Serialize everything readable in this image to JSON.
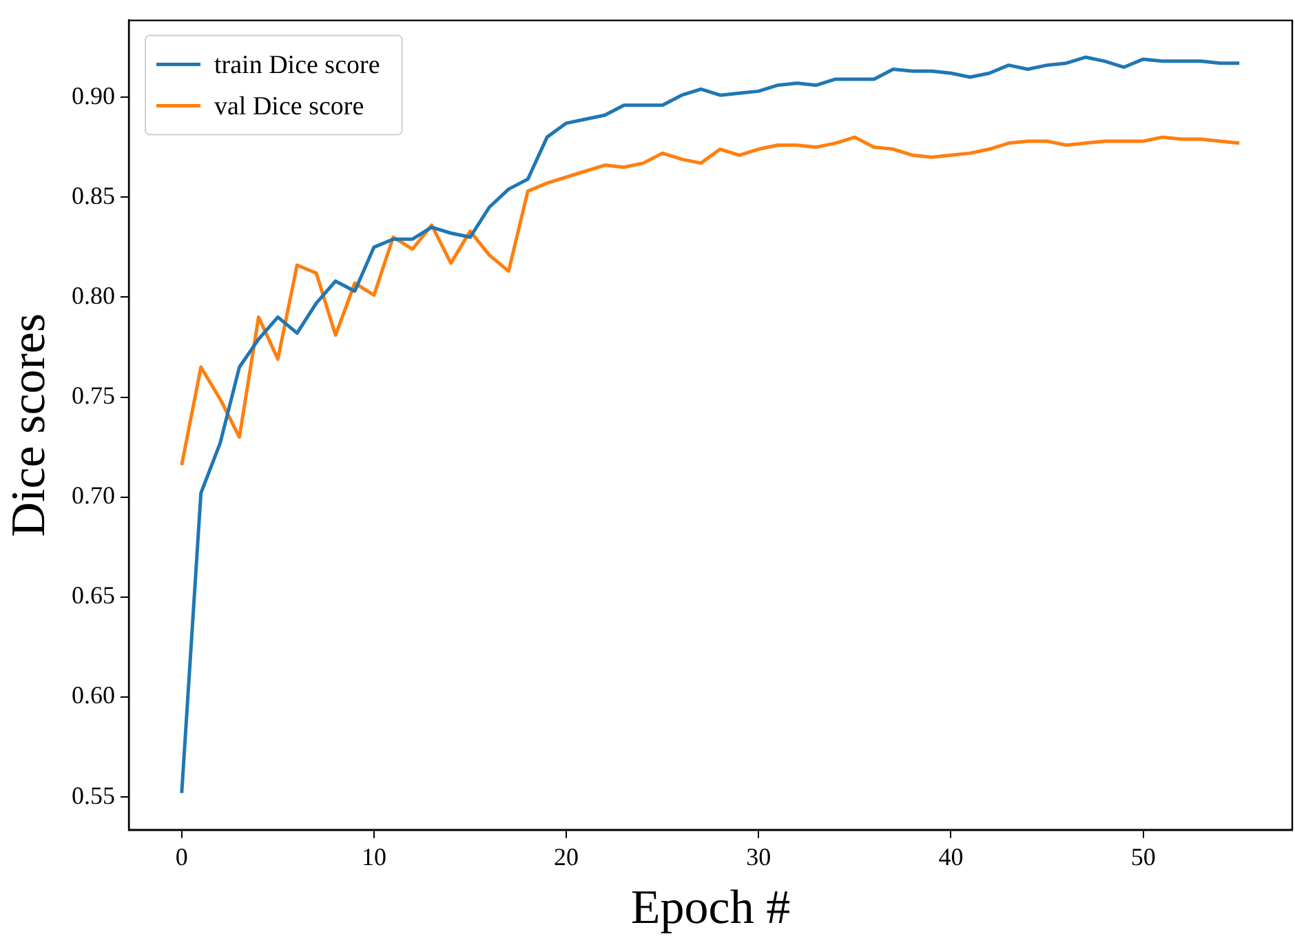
{
  "chart_data": {
    "type": "line",
    "xlabel": "Epoch #",
    "ylabel": "Dice scores",
    "x": [
      0,
      1,
      2,
      3,
      4,
      5,
      6,
      7,
      8,
      9,
      10,
      11,
      12,
      13,
      14,
      15,
      16,
      17,
      18,
      19,
      20,
      21,
      22,
      23,
      24,
      25,
      26,
      27,
      28,
      29,
      30,
      31,
      32,
      33,
      34,
      35,
      36,
      37,
      38,
      39,
      40,
      41,
      42,
      43,
      44,
      45,
      46,
      47,
      48,
      49,
      50,
      51,
      52,
      53,
      54,
      55
    ],
    "series": [
      {
        "name": "train Dice score",
        "color": "#1f77b4",
        "values": [
          0.552,
          0.702,
          0.727,
          0.765,
          0.779,
          0.79,
          0.782,
          0.797,
          0.808,
          0.803,
          0.825,
          0.829,
          0.829,
          0.835,
          0.832,
          0.83,
          0.845,
          0.854,
          0.859,
          0.88,
          0.887,
          0.889,
          0.891,
          0.896,
          0.896,
          0.896,
          0.901,
          0.904,
          0.901,
          0.902,
          0.903,
          0.906,
          0.907,
          0.906,
          0.909,
          0.909,
          0.909,
          0.914,
          0.913,
          0.913,
          0.912,
          0.91,
          0.912,
          0.916,
          0.914,
          0.916,
          0.917,
          0.92,
          0.918,
          0.915,
          0.919,
          0.918,
          0.918,
          0.918,
          0.917,
          0.917
        ]
      },
      {
        "name": "val Dice score",
        "color": "#ff7f0e",
        "values": [
          0.716,
          0.765,
          0.749,
          0.73,
          0.79,
          0.769,
          0.816,
          0.812,
          0.781,
          0.807,
          0.801,
          0.83,
          0.824,
          0.836,
          0.817,
          0.833,
          0.821,
          0.813,
          0.853,
          0.857,
          0.86,
          0.863,
          0.866,
          0.865,
          0.867,
          0.872,
          0.869,
          0.867,
          0.874,
          0.871,
          0.874,
          0.876,
          0.876,
          0.875,
          0.877,
          0.88,
          0.875,
          0.874,
          0.871,
          0.87,
          0.871,
          0.872,
          0.874,
          0.877,
          0.878,
          0.878,
          0.876,
          0.877,
          0.878,
          0.878,
          0.878,
          0.88,
          0.879,
          0.879,
          0.878,
          0.877
        ]
      }
    ],
    "xlim": [
      -2.75,
      57.75
    ],
    "xticks": [
      0,
      10,
      20,
      30,
      40,
      50
    ],
    "ylim": [
      0.5336,
      0.9384
    ],
    "yticks": [
      {
        "value": 0.55,
        "label": "0.55"
      },
      {
        "value": 0.6,
        "label": "0.60"
      },
      {
        "value": 0.65,
        "label": "0.65"
      },
      {
        "value": 0.7,
        "label": "0.70"
      },
      {
        "value": 0.75,
        "label": "0.75"
      },
      {
        "value": 0.8,
        "label": "0.80"
      },
      {
        "value": 0.85,
        "label": "0.85"
      },
      {
        "value": 0.9,
        "label": "0.90"
      }
    ],
    "legend": "top left",
    "grid": false,
    "marker": "none",
    "line_style": "solid"
  }
}
